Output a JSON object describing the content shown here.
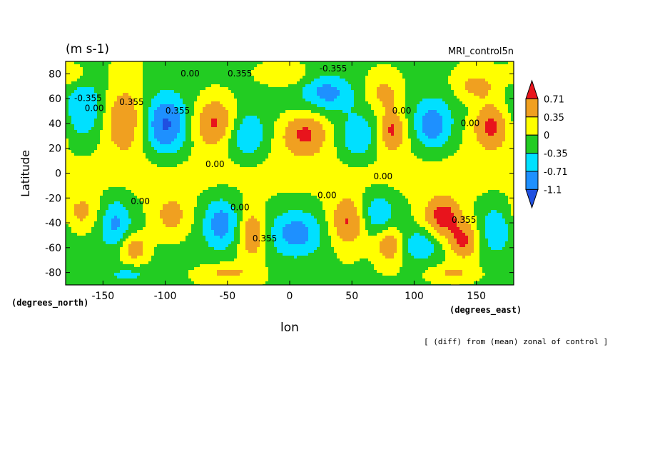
{
  "chart_data": {
    "type": "heatmap",
    "units_label": "(m s-1)",
    "run_label": "MRI_control5n",
    "ylabel": "Latitude",
    "xlabel": "lon",
    "y_units_label": "(degrees_north)",
    "x_units_label": "(degrees_east)",
    "caption": "[ (diff) from (mean) zonal of control ]",
    "xlim": [
      -180,
      180
    ],
    "ylim": [
      -90,
      90
    ],
    "x_ticks": [
      -150,
      -100,
      -50,
      0,
      50,
      100,
      150
    ],
    "y_ticks": [
      80,
      60,
      40,
      20,
      0,
      -20,
      -40,
      -60,
      -80
    ],
    "colorbar": {
      "levels": [
        "0.71",
        "0.35",
        "0",
        "-0.35",
        "-0.71",
        "-1.1"
      ],
      "colors": [
        "#e8141c",
        "#f0a020",
        "#ffff00",
        "#22cc22",
        "#00e0ff",
        "#1e90ff",
        "#2050e0"
      ]
    },
    "contour_labels": [
      {
        "text": "0.00",
        "lon": -80,
        "lat": 78
      },
      {
        "text": "0.355",
        "lon": -40,
        "lat": 78
      },
      {
        "text": "-0.355",
        "lon": 35,
        "lat": 82
      },
      {
        "text": "0.355",
        "lon": -127,
        "lat": 55
      },
      {
        "text": "-0.355",
        "lon": -162,
        "lat": 58
      },
      {
        "text": "0.00",
        "lon": -157,
        "lat": 50
      },
      {
        "text": "0.355",
        "lon": -90,
        "lat": 48
      },
      {
        "text": "0.00",
        "lon": 90,
        "lat": 48
      },
      {
        "text": "0.00",
        "lon": 145,
        "lat": 38
      },
      {
        "text": "0.00",
        "lon": -60,
        "lat": 5
      },
      {
        "text": "0.00",
        "lon": 30,
        "lat": -20
      },
      {
        "text": "0.00",
        "lon": 75,
        "lat": -5
      },
      {
        "text": "0.00",
        "lon": -120,
        "lat": -25
      },
      {
        "text": "0.00",
        "lon": -40,
        "lat": -30
      },
      {
        "text": "0.355",
        "lon": -20,
        "lat": -55
      },
      {
        "text": "0.355",
        "lon": 140,
        "lat": -40
      }
    ],
    "features": [
      {
        "lon": -132,
        "lat": 45,
        "value": 0.85,
        "sx": 13,
        "sy": 20
      },
      {
        "lon": -165,
        "lat": 50,
        "value": -0.55,
        "sx": 11,
        "sy": 18
      },
      {
        "lon": -100,
        "lat": 38,
        "value": -1.1,
        "sx": 13,
        "sy": 16
      },
      {
        "lon": -60,
        "lat": 42,
        "value": 0.9,
        "sx": 14,
        "sy": 15
      },
      {
        "lon": -35,
        "lat": 30,
        "value": -0.75,
        "sx": 11,
        "sy": 13
      },
      {
        "lon": 12,
        "lat": 32,
        "value": 0.85,
        "sx": 14,
        "sy": 13
      },
      {
        "lon": 30,
        "lat": 65,
        "value": -0.7,
        "sx": 14,
        "sy": 10
      },
      {
        "lon": 55,
        "lat": 28,
        "value": -0.6,
        "sx": 11,
        "sy": 13
      },
      {
        "lon": 75,
        "lat": 65,
        "value": 0.6,
        "sx": 11,
        "sy": 10
      },
      {
        "lon": 82,
        "lat": 35,
        "value": 0.85,
        "sx": 8,
        "sy": 13
      },
      {
        "lon": 115,
        "lat": 38,
        "value": -0.9,
        "sx": 10,
        "sy": 13
      },
      {
        "lon": 150,
        "lat": 70,
        "value": 0.6,
        "sx": 13,
        "sy": 9
      },
      {
        "lon": 162,
        "lat": 38,
        "value": 0.9,
        "sx": 11,
        "sy": 14
      },
      {
        "lon": -167,
        "lat": -32,
        "value": 0.5,
        "sx": 10,
        "sy": 11
      },
      {
        "lon": -140,
        "lat": -40,
        "value": -0.7,
        "sx": 9,
        "sy": 14
      },
      {
        "lon": -125,
        "lat": -60,
        "value": 0.75,
        "sx": 8,
        "sy": 8
      },
      {
        "lon": -95,
        "lat": -35,
        "value": 0.55,
        "sx": 11,
        "sy": 13
      },
      {
        "lon": -55,
        "lat": -40,
        "value": -0.85,
        "sx": 10,
        "sy": 14
      },
      {
        "lon": -30,
        "lat": -50,
        "value": 0.85,
        "sx": 8,
        "sy": 14
      },
      {
        "lon": 5,
        "lat": -48,
        "value": -0.8,
        "sx": 15,
        "sy": 13
      },
      {
        "lon": 47,
        "lat": -40,
        "value": 0.85,
        "sx": 11,
        "sy": 15
      },
      {
        "lon": 70,
        "lat": -32,
        "value": -0.65,
        "sx": 10,
        "sy": 12
      },
      {
        "lon": 80,
        "lat": -58,
        "value": 0.8,
        "sx": 8,
        "sy": 10
      },
      {
        "lon": 105,
        "lat": -58,
        "value": -0.6,
        "sx": 10,
        "sy": 9
      },
      {
        "lon": 123,
        "lat": -35,
        "value": 0.95,
        "sx": 11,
        "sy": 12
      },
      {
        "lon": 140,
        "lat": -55,
        "value": 0.85,
        "sx": 9,
        "sy": 11
      },
      {
        "lon": 165,
        "lat": -45,
        "value": -0.55,
        "sx": 9,
        "sy": 14
      },
      {
        "lon": -50,
        "lat": -80,
        "value": 0.5,
        "sx": 14,
        "sy": 5
      },
      {
        "lon": -130,
        "lat": -82,
        "value": -0.45,
        "sx": 12,
        "sy": 4
      },
      {
        "lon": 130,
        "lat": -80,
        "value": 0.45,
        "sx": 12,
        "sy": 4
      },
      {
        "lon": -5,
        "lat": 78,
        "value": 0.45,
        "sx": 14,
        "sy": 6
      },
      {
        "lon": -175,
        "lat": 78,
        "value": 0.4,
        "sx": 8,
        "sy": 6
      }
    ],
    "background_bands": [
      {
        "lat": 0,
        "width": 16,
        "value": 0.12
      },
      {
        "lat": 58,
        "width": 25,
        "value": -0.18
      },
      {
        "lat": -55,
        "width": 25,
        "value": -0.12
      }
    ]
  }
}
